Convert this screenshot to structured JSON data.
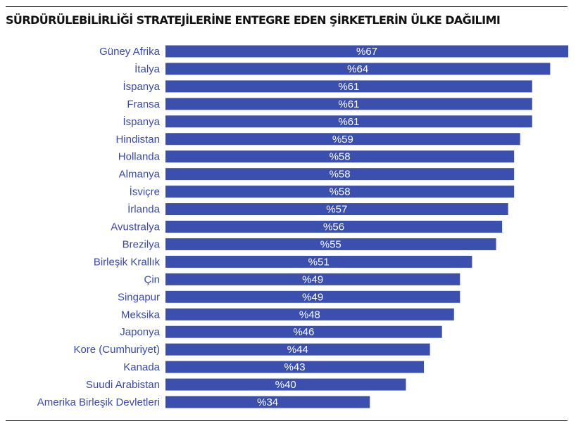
{
  "chart_data": {
    "type": "bar",
    "orientation": "horizontal",
    "title": "SÜRDÜRÜLEBİLİRLİĞİ STRATEJİLERİNE ENTEGRE EDEN ŞİRKETLERİN ÜLKE DAĞILIMI",
    "xlabel": "",
    "ylabel": "",
    "bar_color": "#3b4fae",
    "label_color": "#3a4aa8",
    "value_prefix": "%",
    "xlim": [
      0,
      67
    ],
    "grid": false,
    "categories": [
      "Güney Afrika",
      "İtalya",
      "İspanya",
      "Fransa",
      "İspanya",
      "Hindistan",
      "Hollanda",
      "Almanya",
      "İsviçre",
      "İrlanda",
      "Avustralya",
      "Brezilya",
      "Birleşik Krallık",
      "Çin",
      "Singapur",
      "Meksika",
      "Japonya",
      "Kore (Cumhuriyet)",
      "Kanada",
      "Suudi Arabistan",
      "Amerika Birleşik Devletleri"
    ],
    "values": [
      67,
      64,
      61,
      61,
      61,
      59,
      58,
      58,
      58,
      57,
      56,
      55,
      51,
      49,
      49,
      48,
      46,
      44,
      43,
      40,
      34
    ],
    "value_labels": [
      "%67",
      "%64",
      "%61",
      "%61",
      "%61",
      "%59",
      "%58",
      "%58",
      "%58",
      "%57",
      "%56",
      "%55",
      "%51",
      "%49",
      "%49",
      "%48",
      "%46",
      "%44",
      "%43",
      "%40",
      "%34"
    ]
  }
}
